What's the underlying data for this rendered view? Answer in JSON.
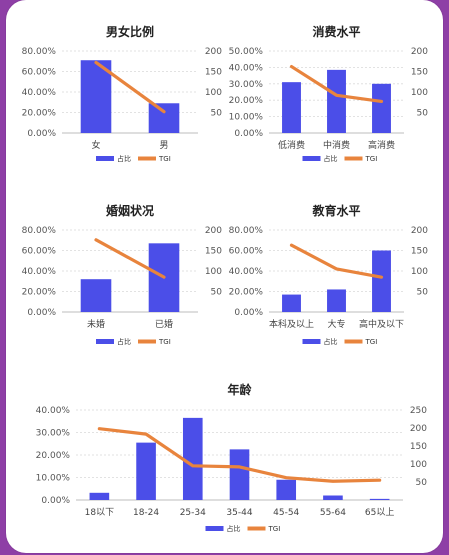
{
  "colors": {
    "bar": "#4b4ee8",
    "line": "#e8843d",
    "grid": "#d9d9d9",
    "axis": "#bdbdbd"
  },
  "chart_data": [
    {
      "type": "bar",
      "title": "男女比例",
      "categories": [
        "女",
        "男"
      ],
      "series": [
        {
          "name": "占比",
          "type": "bar",
          "axis": "left",
          "values": [
            0.71,
            0.29
          ]
        },
        {
          "name": "TGI",
          "type": "line",
          "axis": "right",
          "values": [
            172,
            52
          ]
        }
      ],
      "left_ticks": [
        "0.00%",
        "20.00%",
        "40.00%",
        "60.00%",
        "80.00%"
      ],
      "right_ticks": [
        "",
        "50",
        "100",
        "150",
        "200"
      ],
      "ylim": [
        0,
        0.8
      ],
      "y2lim": [
        0,
        200
      ],
      "grid": true,
      "legend": "bottom"
    },
    {
      "type": "bar",
      "title": "消费水平",
      "categories": [
        "低消费",
        "中消费",
        "高消费"
      ],
      "series": [
        {
          "name": "占比",
          "type": "bar",
          "axis": "left",
          "values": [
            0.31,
            0.385,
            0.3
          ]
        },
        {
          "name": "TGI",
          "type": "line",
          "axis": "right",
          "values": [
            162,
            92,
            77
          ]
        }
      ],
      "left_ticks": [
        "0.00%",
        "10.00%",
        "20.00%",
        "30.00%",
        "40.00%",
        "50.00%"
      ],
      "right_ticks": [
        "",
        "50",
        "100",
        "150",
        "200"
      ],
      "ylim": [
        0,
        0.5
      ],
      "y2lim": [
        0,
        200
      ],
      "grid": true,
      "legend": "bottom"
    },
    {
      "type": "bar",
      "title": "婚姻状况",
      "categories": [
        "未婚",
        "已婚"
      ],
      "series": [
        {
          "name": "占比",
          "type": "bar",
          "axis": "left",
          "values": [
            0.32,
            0.67
          ]
        },
        {
          "name": "TGI",
          "type": "line",
          "axis": "right",
          "values": [
            176,
            85
          ]
        }
      ],
      "left_ticks": [
        "0.00%",
        "20.00%",
        "40.00%",
        "60.00%",
        "80.00%"
      ],
      "right_ticks": [
        "",
        "50",
        "100",
        "150",
        "200"
      ],
      "ylim": [
        0,
        0.8
      ],
      "y2lim": [
        0,
        200
      ],
      "grid": true,
      "legend": "bottom"
    },
    {
      "type": "bar",
      "title": "教育水平",
      "categories": [
        "本科及以上",
        "大专",
        "高中及以下"
      ],
      "series": [
        {
          "name": "占比",
          "type": "bar",
          "axis": "left",
          "values": [
            0.17,
            0.22,
            0.6
          ]
        },
        {
          "name": "TGI",
          "type": "line",
          "axis": "right",
          "values": [
            163,
            105,
            85
          ]
        }
      ],
      "left_ticks": [
        "0.00%",
        "20.00%",
        "40.00%",
        "60.00%",
        "80.00%"
      ],
      "right_ticks": [
        "",
        "50",
        "100",
        "150",
        "200"
      ],
      "ylim": [
        0,
        0.8
      ],
      "y2lim": [
        0,
        200
      ],
      "grid": true,
      "legend": "bottom"
    },
    {
      "type": "bar",
      "title": "年龄",
      "categories": [
        "18以下",
        "18-24",
        "25-34",
        "35-44",
        "45-54",
        "55-64",
        "65以上"
      ],
      "series": [
        {
          "name": "占比",
          "type": "bar",
          "axis": "left",
          "values": [
            0.032,
            0.255,
            0.365,
            0.225,
            0.09,
            0.02,
            0.005
          ]
        },
        {
          "name": "TGI",
          "type": "line",
          "axis": "right",
          "values": [
            198,
            183,
            95,
            92,
            62,
            52,
            55
          ]
        }
      ],
      "left_ticks": [
        "0.00%",
        "10.00%",
        "20.00%",
        "30.00%",
        "40.00%"
      ],
      "right_ticks": [
        "",
        "50",
        "100",
        "150",
        "200",
        "250"
      ],
      "ylim": [
        0,
        0.4
      ],
      "y2lim": [
        0,
        250
      ],
      "grid": true,
      "legend": "bottom"
    }
  ]
}
